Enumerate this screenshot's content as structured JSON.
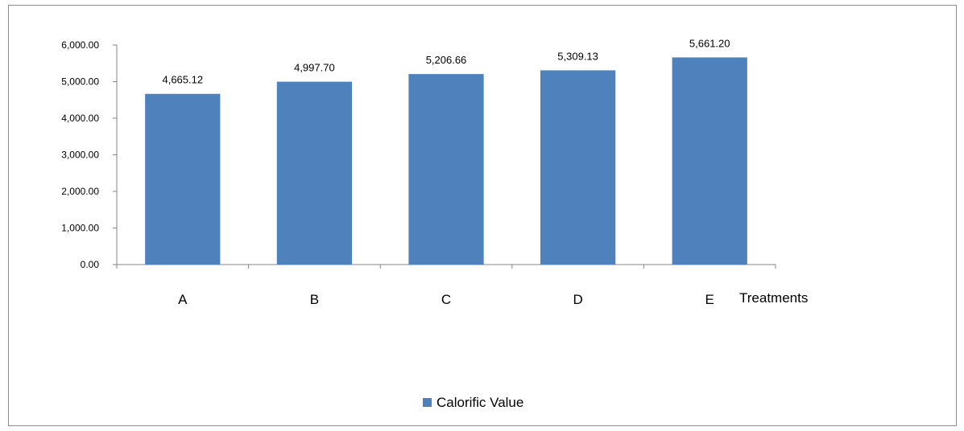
{
  "chart_data": {
    "type": "bar",
    "title": "",
    "xlabel": "Treatments",
    "ylabel": "",
    "categories": [
      "A",
      "B",
      "C",
      "D",
      "E"
    ],
    "series": [
      {
        "name": "Calorific Value",
        "values": [
          4665.12,
          4997.7,
          5206.66,
          5309.13,
          5661.2
        ],
        "labels": [
          "4,665.12",
          "4,997.70",
          "5,206.66",
          "5,309.13",
          "5,661.20"
        ],
        "color": "#4f81bd"
      }
    ],
    "yticks": [
      {
        "value": 0,
        "label": "0.00"
      },
      {
        "value": 1000,
        "label": "1,000.00"
      },
      {
        "value": 2000,
        "label": "2,000.00"
      },
      {
        "value": 3000,
        "label": "3,000.00"
      },
      {
        "value": 4000,
        "label": "4,000.00"
      },
      {
        "value": 5000,
        "label": "5,000.00"
      },
      {
        "value": 6000,
        "label": "6,000.00"
      }
    ],
    "ylim": [
      0,
      6000
    ],
    "grid": false,
    "legend": "bottom-center"
  }
}
